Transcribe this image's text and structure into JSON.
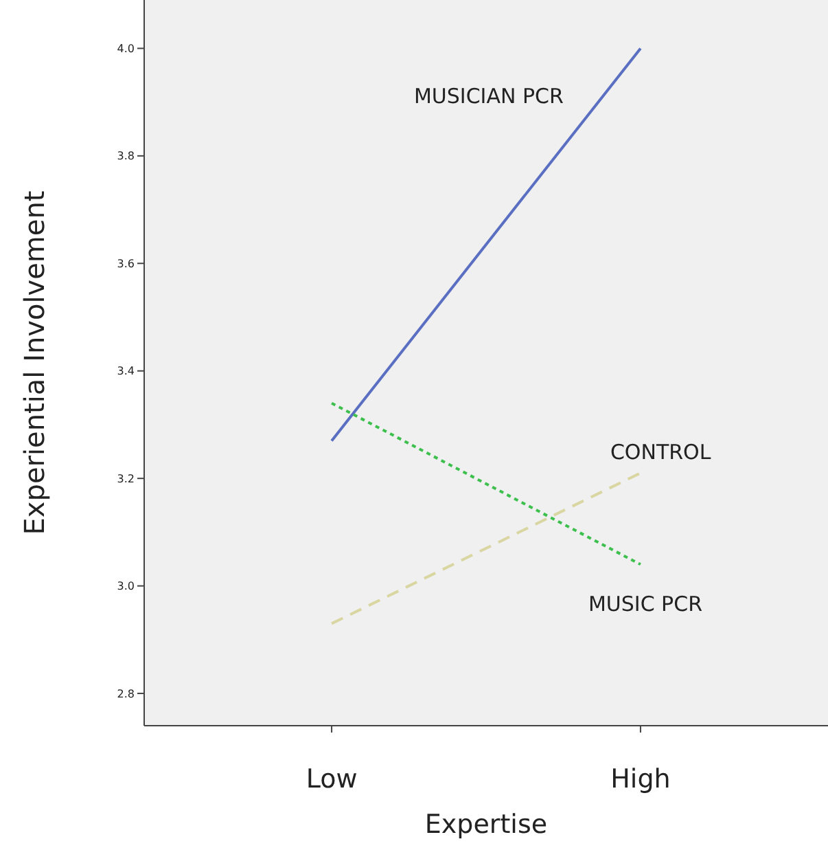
{
  "chart_data": {
    "type": "line",
    "xlabel": "Expertise",
    "ylabel": "Experiential Involvement",
    "categories": [
      "Low",
      "High"
    ],
    "ylim": [
      2.74,
      4.09
    ],
    "yticks": [
      {
        "value": 2.8,
        "label": "2.8"
      },
      {
        "value": 3.0,
        "label": "3.0"
      },
      {
        "value": 3.2,
        "label": "3.2"
      },
      {
        "value": 3.4,
        "label": "3.4"
      },
      {
        "value": 3.6,
        "label": "3.6"
      },
      {
        "value": 3.8,
        "label": "3.8"
      },
      {
        "value": 4.0,
        "label": "4.0"
      }
    ],
    "grid": false,
    "legend": false,
    "marker": "none",
    "series": [
      {
        "name": "MUSICIAN PCR",
        "color": "#5a6fc2",
        "line_style": "solid",
        "values": [
          3.27,
          4.0
        ]
      },
      {
        "name": "MUSIC PCR",
        "color": "#3dbf4e",
        "line_style": "dotted",
        "values": [
          3.34,
          3.04
        ]
      },
      {
        "name": "CONTROL",
        "color": "#d9d6a2",
        "line_style": "dashed",
        "values": [
          2.93,
          3.21
        ]
      }
    ]
  }
}
